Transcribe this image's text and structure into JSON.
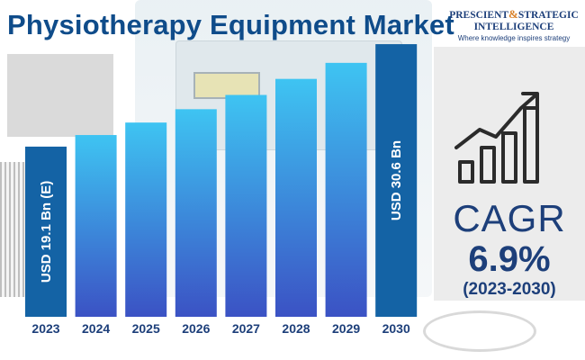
{
  "header": {
    "title": "Physiotherapy Equipment Market"
  },
  "logo": {
    "line1_a": "PRESCIENT",
    "ampersand": "&",
    "line1_b": "STRATEGIC",
    "line2": "INTELLIGENCE",
    "tagline": "Where knowledge inspires strategy"
  },
  "kpi": {
    "icon": "growth-bar-chart-icon",
    "label": "CAGR",
    "value": "6.9%",
    "period": "(2023-2030)"
  },
  "colors": {
    "title": "#0f4c8a",
    "highlight_bar": "#1463a5",
    "bar_gradient_top": "#3ec4f2",
    "bar_gradient_bottom": "#3b52c4",
    "kpi_text": "#1d3f7a"
  },
  "chart_data": {
    "type": "bar",
    "title": "Physiotherapy Equipment Market",
    "xlabel": "",
    "ylabel": "",
    "unit": "USD Bn",
    "categories": [
      "2023",
      "2024",
      "2025",
      "2026",
      "2027",
      "2028",
      "2029",
      "2030"
    ],
    "values": [
      19.1,
      20.4,
      21.8,
      23.3,
      24.9,
      26.7,
      28.5,
      30.6
    ],
    "ylim": [
      0,
      32
    ],
    "grid": false,
    "legend": "none",
    "highlighted": [
      "2023",
      "2030"
    ],
    "data_labels": [
      {
        "category": "2023",
        "text": "USD 19.1 Bn (E)"
      },
      {
        "category": "2030",
        "text": "USD 30.6 Bn"
      }
    ]
  }
}
